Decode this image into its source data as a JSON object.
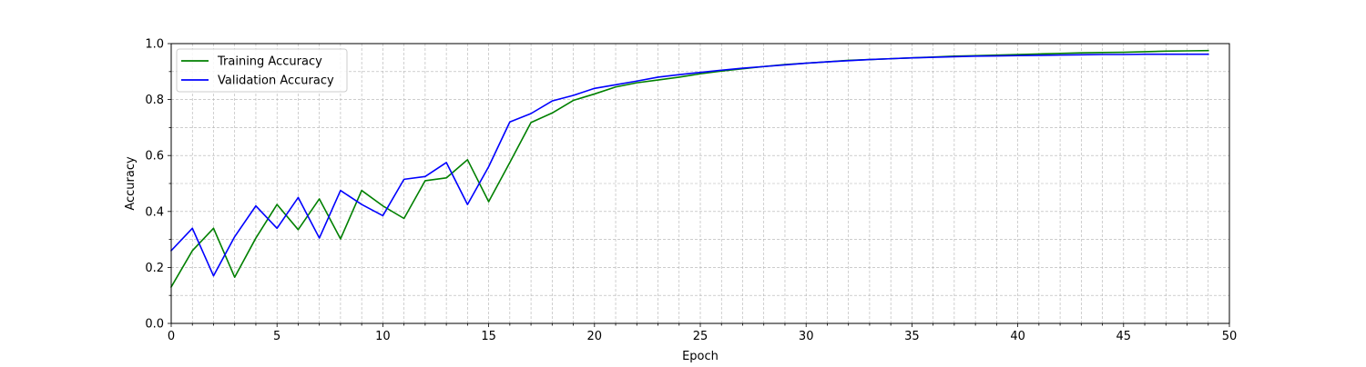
{
  "chart_data": {
    "type": "line",
    "title": "",
    "xlabel": "Epoch",
    "ylabel": "Accuracy",
    "xlim": [
      0,
      50
    ],
    "ylim": [
      0,
      1.0
    ],
    "x_ticks": [
      0,
      5,
      10,
      15,
      20,
      25,
      30,
      35,
      40,
      45,
      50
    ],
    "y_ticks": [
      0.0,
      0.2,
      0.4,
      0.6,
      0.8,
      1.0
    ],
    "x_tick_labels": [
      "0",
      "5",
      "10",
      "15",
      "20",
      "25",
      "30",
      "35",
      "40",
      "45",
      "50"
    ],
    "y_tick_labels": [
      "0.0",
      "0.2",
      "0.4",
      "0.6",
      "0.8",
      "1.0"
    ],
    "grid": true,
    "grid_style": "dashed, major and minor",
    "legend_position": "upper-left",
    "x": [
      0,
      1,
      2,
      3,
      4,
      5,
      6,
      7,
      8,
      9,
      10,
      11,
      12,
      13,
      14,
      15,
      16,
      17,
      18,
      19,
      20,
      21,
      22,
      23,
      24,
      25,
      26,
      27,
      28,
      29,
      30,
      31,
      32,
      33,
      34,
      35,
      36,
      37,
      38,
      39,
      40,
      41,
      42,
      43,
      44,
      45,
      46,
      47,
      48,
      49
    ],
    "series": [
      {
        "name": "Training Accuracy",
        "color": "#008000",
        "values": [
          0.13,
          0.26,
          0.34,
          0.165,
          0.305,
          0.425,
          0.335,
          0.445,
          0.302,
          0.475,
          0.42,
          0.375,
          0.51,
          0.52,
          0.585,
          0.435,
          0.575,
          0.718,
          0.752,
          0.797,
          0.82,
          0.845,
          0.86,
          0.87,
          0.88,
          0.892,
          0.902,
          0.91,
          0.918,
          0.925,
          0.93,
          0.935,
          0.94,
          0.943,
          0.946,
          0.949,
          0.952,
          0.955,
          0.957,
          0.959,
          0.961,
          0.963,
          0.965,
          0.967,
          0.968,
          0.969,
          0.971,
          0.973,
          0.974,
          0.975
        ]
      },
      {
        "name": "Validation Accuracy",
        "color": "#0000ff",
        "values": [
          0.26,
          0.34,
          0.17,
          0.31,
          0.42,
          0.34,
          0.45,
          0.305,
          0.475,
          0.425,
          0.385,
          0.515,
          0.525,
          0.575,
          0.425,
          0.56,
          0.72,
          0.75,
          0.795,
          0.815,
          0.84,
          0.853,
          0.866,
          0.88,
          0.889,
          0.897,
          0.905,
          0.912,
          0.918,
          0.924,
          0.93,
          0.935,
          0.939,
          0.943,
          0.946,
          0.949,
          0.951,
          0.953,
          0.955,
          0.956,
          0.957,
          0.958,
          0.959,
          0.96,
          0.961,
          0.961,
          0.962,
          0.962,
          0.962,
          0.962
        ]
      }
    ]
  }
}
